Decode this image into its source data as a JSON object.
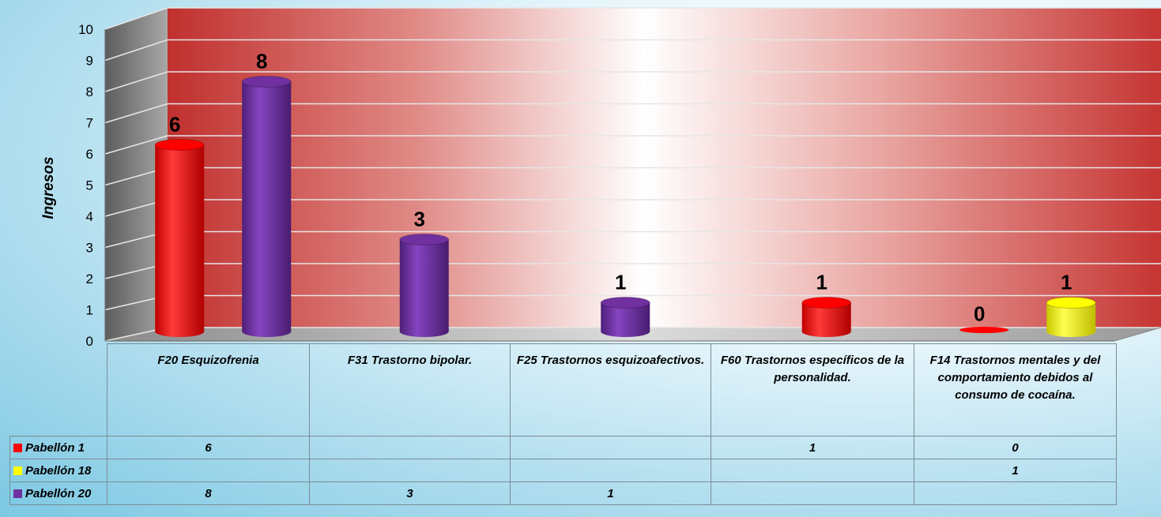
{
  "chart_data": {
    "type": "bar",
    "ylabel": "Ingresos",
    "ylim": [
      0,
      10
    ],
    "yticks": [
      0,
      1,
      2,
      3,
      4,
      5,
      6,
      7,
      8,
      9,
      10
    ],
    "grid": true,
    "categories": [
      "F20 Esquizofrenia",
      "F31 Trastorno bipolar.",
      "F25 Trastornos esquizoafectivos.",
      "F60 Trastornos específicos de la personalidad.",
      "F14 Trastornos mentales y del comportamiento debidos al consumo de cocaína."
    ],
    "series": [
      {
        "name": "Pabellón 1",
        "color": "#ff0000",
        "values": [
          6,
          null,
          null,
          1,
          0
        ]
      },
      {
        "name": "Pabellón 18",
        "color": "#ffff00",
        "values": [
          null,
          null,
          null,
          null,
          1
        ]
      },
      {
        "name": "Pabellón 20",
        "color": "#7030a0",
        "values": [
          8,
          3,
          1,
          null,
          null
        ]
      }
    ],
    "legend_position": "data-table"
  }
}
